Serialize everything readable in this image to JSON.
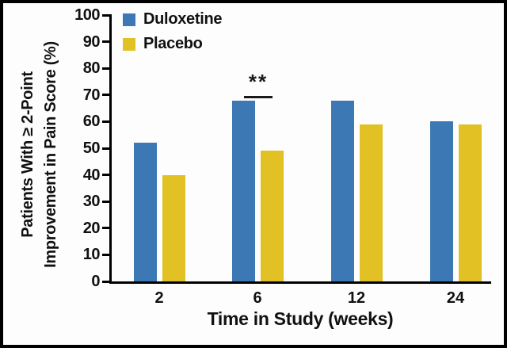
{
  "chart_data": {
    "type": "bar",
    "title": "",
    "categories": [
      "2",
      "6",
      "12",
      "24"
    ],
    "series": [
      {
        "name": "Duloxetine",
        "color": "#3c78b4",
        "values": [
          52,
          68,
          68,
          60
        ]
      },
      {
        "name": "Placebo",
        "color": "#e2c125",
        "values": [
          40,
          49,
          59,
          59
        ]
      }
    ],
    "xlabel": "Time in Study (weeks)",
    "ylabel_line1": "Patients With ≥ 2-Point",
    "ylabel_line2": "Improvement in Pain Score (%)",
    "ylim": [
      0,
      100
    ],
    "yticks": [
      0,
      10,
      20,
      30,
      40,
      50,
      60,
      70,
      80,
      90,
      100
    ],
    "grid": false,
    "legend_position": "top-left-inside",
    "annotation": {
      "text": "**",
      "week": "6"
    },
    "axis_color": "#000000",
    "background_color": "#fdfdfd"
  }
}
